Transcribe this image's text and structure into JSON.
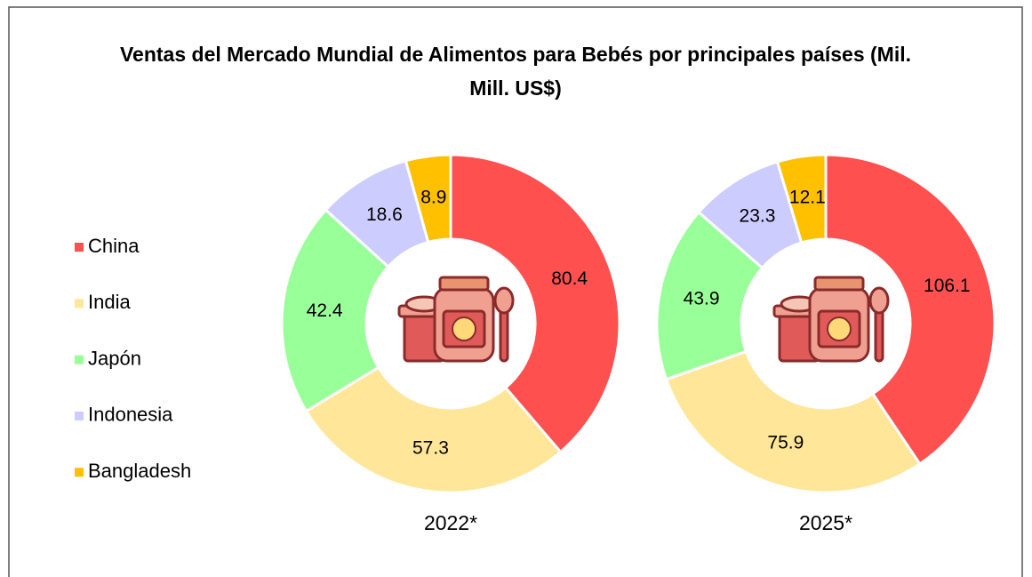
{
  "chart_data": {
    "type": "donut",
    "title": "Ventas del Mercado Mundial de Alimentos para Bebés por principales países (Mil. Mill. US$)",
    "categories": [
      "China",
      "India",
      "Japón",
      "Indonesia",
      "Bangladesh"
    ],
    "colors": [
      "#ff5050",
      "#ffe699",
      "#99ff99",
      "#ccccff",
      "#ffc000"
    ],
    "series": [
      {
        "name": "2022*",
        "values": [
          80.4,
          57.3,
          42.4,
          18.6,
          8.9
        ]
      },
      {
        "name": "2025*",
        "values": [
          106.1,
          75.9,
          43.9,
          23.3,
          12.1
        ]
      }
    ],
    "legend": "left"
  }
}
